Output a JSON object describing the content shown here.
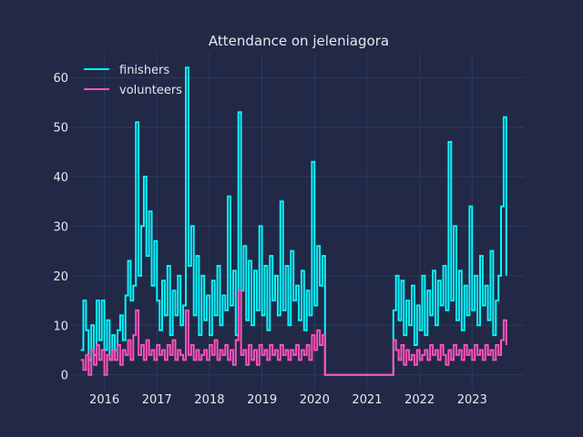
{
  "chart_data": {
    "type": "line",
    "title": "Attendance on jeleniagora",
    "xlabel": "",
    "ylabel": "",
    "xlim": [
      2015.4,
      2024.0
    ],
    "ylim": [
      -3,
      65
    ],
    "x_ticks": [
      2016,
      2017,
      2018,
      2019,
      2020,
      2021,
      2022,
      2023
    ],
    "y_ticks": [
      0,
      10,
      20,
      30,
      40,
      50,
      60
    ],
    "grid": true,
    "legend_position": "top-left",
    "series": [
      {
        "name": "finishers",
        "color": "#08F7FE",
        "points": [
          [
            2015.55,
            5
          ],
          [
            2015.6,
            15
          ],
          [
            2015.65,
            9
          ],
          [
            2015.7,
            3
          ],
          [
            2015.75,
            10
          ],
          [
            2015.8,
            4
          ],
          [
            2015.85,
            15
          ],
          [
            2015.9,
            7
          ],
          [
            2015.95,
            15
          ],
          [
            2016.0,
            5
          ],
          [
            2016.05,
            11
          ],
          [
            2016.1,
            3
          ],
          [
            2016.15,
            8
          ],
          [
            2016.2,
            5
          ],
          [
            2016.25,
            9
          ],
          [
            2016.3,
            12
          ],
          [
            2016.35,
            7
          ],
          [
            2016.4,
            16
          ],
          [
            2016.45,
            23
          ],
          [
            2016.5,
            15
          ],
          [
            2016.55,
            18
          ],
          [
            2016.6,
            51
          ],
          [
            2016.65,
            20
          ],
          [
            2016.7,
            30
          ],
          [
            2016.75,
            40
          ],
          [
            2016.8,
            24
          ],
          [
            2016.85,
            33
          ],
          [
            2016.9,
            18
          ],
          [
            2016.95,
            27
          ],
          [
            2017.0,
            15
          ],
          [
            2017.05,
            9
          ],
          [
            2017.1,
            19
          ],
          [
            2017.15,
            12
          ],
          [
            2017.2,
            22
          ],
          [
            2017.25,
            8
          ],
          [
            2017.3,
            17
          ],
          [
            2017.35,
            12
          ],
          [
            2017.4,
            20
          ],
          [
            2017.45,
            10
          ],
          [
            2017.5,
            14
          ],
          [
            2017.55,
            62
          ],
          [
            2017.6,
            22
          ],
          [
            2017.65,
            30
          ],
          [
            2017.7,
            12
          ],
          [
            2017.75,
            24
          ],
          [
            2017.8,
            8
          ],
          [
            2017.85,
            20
          ],
          [
            2017.9,
            11
          ],
          [
            2017.95,
            16
          ],
          [
            2018.0,
            8
          ],
          [
            2018.05,
            19
          ],
          [
            2018.1,
            12
          ],
          [
            2018.15,
            22
          ],
          [
            2018.2,
            10
          ],
          [
            2018.25,
            16
          ],
          [
            2018.3,
            13
          ],
          [
            2018.35,
            36
          ],
          [
            2018.4,
            14
          ],
          [
            2018.45,
            21
          ],
          [
            2018.5,
            8
          ],
          [
            2018.55,
            53
          ],
          [
            2018.6,
            17
          ],
          [
            2018.65,
            26
          ],
          [
            2018.7,
            11
          ],
          [
            2018.75,
            23
          ],
          [
            2018.8,
            10
          ],
          [
            2018.85,
            21
          ],
          [
            2018.9,
            13
          ],
          [
            2018.95,
            30
          ],
          [
            2019.0,
            12
          ],
          [
            2019.05,
            22
          ],
          [
            2019.1,
            9
          ],
          [
            2019.15,
            24
          ],
          [
            2019.2,
            15
          ],
          [
            2019.25,
            20
          ],
          [
            2019.3,
            12
          ],
          [
            2019.35,
            35
          ],
          [
            2019.4,
            13
          ],
          [
            2019.45,
            22
          ],
          [
            2019.5,
            10
          ],
          [
            2019.55,
            25
          ],
          [
            2019.6,
            15
          ],
          [
            2019.65,
            18
          ],
          [
            2019.7,
            11
          ],
          [
            2019.75,
            21
          ],
          [
            2019.8,
            9
          ],
          [
            2019.85,
            17
          ],
          [
            2019.9,
            12
          ],
          [
            2019.95,
            43
          ],
          [
            2020.0,
            14
          ],
          [
            2020.05,
            26
          ],
          [
            2020.1,
            18
          ],
          [
            2020.15,
            24
          ],
          [
            2020.2,
            0
          ],
          [
            2021.45,
            0
          ],
          [
            2021.5,
            13
          ],
          [
            2021.55,
            20
          ],
          [
            2021.6,
            11
          ],
          [
            2021.65,
            19
          ],
          [
            2021.7,
            8
          ],
          [
            2021.75,
            15
          ],
          [
            2021.8,
            10
          ],
          [
            2021.85,
            18
          ],
          [
            2021.9,
            6
          ],
          [
            2021.95,
            14
          ],
          [
            2022.0,
            9
          ],
          [
            2022.05,
            20
          ],
          [
            2022.1,
            8
          ],
          [
            2022.15,
            17
          ],
          [
            2022.2,
            12
          ],
          [
            2022.25,
            21
          ],
          [
            2022.3,
            10
          ],
          [
            2022.35,
            19
          ],
          [
            2022.4,
            14
          ],
          [
            2022.45,
            22
          ],
          [
            2022.5,
            13
          ],
          [
            2022.55,
            47
          ],
          [
            2022.6,
            15
          ],
          [
            2022.65,
            30
          ],
          [
            2022.7,
            11
          ],
          [
            2022.75,
            21
          ],
          [
            2022.8,
            9
          ],
          [
            2022.85,
            18
          ],
          [
            2022.9,
            12
          ],
          [
            2022.95,
            34
          ],
          [
            2023.0,
            13
          ],
          [
            2023.05,
            20
          ],
          [
            2023.1,
            10
          ],
          [
            2023.15,
            24
          ],
          [
            2023.2,
            14
          ],
          [
            2023.25,
            18
          ],
          [
            2023.3,
            11
          ],
          [
            2023.35,
            25
          ],
          [
            2023.4,
            8
          ],
          [
            2023.45,
            15
          ],
          [
            2023.5,
            20
          ],
          [
            2023.55,
            34
          ],
          [
            2023.6,
            52
          ],
          [
            2023.65,
            20
          ]
        ]
      },
      {
        "name": "volunteers",
        "color": "#FE53BB",
        "points": [
          [
            2015.55,
            3
          ],
          [
            2015.6,
            1
          ],
          [
            2015.65,
            4
          ],
          [
            2015.7,
            0
          ],
          [
            2015.75,
            5
          ],
          [
            2015.8,
            2
          ],
          [
            2015.85,
            6
          ],
          [
            2015.9,
            3
          ],
          [
            2015.95,
            5
          ],
          [
            2016.0,
            0
          ],
          [
            2016.05,
            4
          ],
          [
            2016.1,
            3
          ],
          [
            2016.15,
            5
          ],
          [
            2016.2,
            3
          ],
          [
            2016.25,
            6
          ],
          [
            2016.3,
            2
          ],
          [
            2016.35,
            5
          ],
          [
            2016.4,
            4
          ],
          [
            2016.45,
            7
          ],
          [
            2016.5,
            3
          ],
          [
            2016.55,
            8
          ],
          [
            2016.6,
            13
          ],
          [
            2016.65,
            4
          ],
          [
            2016.7,
            6
          ],
          [
            2016.75,
            3
          ],
          [
            2016.8,
            7
          ],
          [
            2016.85,
            4
          ],
          [
            2016.9,
            5
          ],
          [
            2016.95,
            3
          ],
          [
            2017.0,
            6
          ],
          [
            2017.05,
            4
          ],
          [
            2017.1,
            5
          ],
          [
            2017.15,
            3
          ],
          [
            2017.2,
            6
          ],
          [
            2017.25,
            4
          ],
          [
            2017.3,
            7
          ],
          [
            2017.35,
            3
          ],
          [
            2017.4,
            5
          ],
          [
            2017.45,
            4
          ],
          [
            2017.5,
            3
          ],
          [
            2017.55,
            13
          ],
          [
            2017.6,
            4
          ],
          [
            2017.65,
            6
          ],
          [
            2017.7,
            3
          ],
          [
            2017.75,
            5
          ],
          [
            2017.8,
            3
          ],
          [
            2017.85,
            4
          ],
          [
            2017.9,
            5
          ],
          [
            2017.95,
            3
          ],
          [
            2018.0,
            6
          ],
          [
            2018.05,
            4
          ],
          [
            2018.1,
            7
          ],
          [
            2018.15,
            3
          ],
          [
            2018.2,
            5
          ],
          [
            2018.25,
            4
          ],
          [
            2018.3,
            6
          ],
          [
            2018.35,
            3
          ],
          [
            2018.4,
            5
          ],
          [
            2018.45,
            2
          ],
          [
            2018.5,
            7
          ],
          [
            2018.55,
            17
          ],
          [
            2018.6,
            4
          ],
          [
            2018.65,
            5
          ],
          [
            2018.7,
            2
          ],
          [
            2018.75,
            6
          ],
          [
            2018.8,
            3
          ],
          [
            2018.85,
            5
          ],
          [
            2018.9,
            2
          ],
          [
            2018.95,
            6
          ],
          [
            2019.0,
            4
          ],
          [
            2019.05,
            5
          ],
          [
            2019.1,
            3
          ],
          [
            2019.15,
            6
          ],
          [
            2019.2,
            4
          ],
          [
            2019.25,
            5
          ],
          [
            2019.3,
            3
          ],
          [
            2019.35,
            6
          ],
          [
            2019.4,
            4
          ],
          [
            2019.45,
            5
          ],
          [
            2019.5,
            3
          ],
          [
            2019.55,
            5
          ],
          [
            2019.6,
            4
          ],
          [
            2019.65,
            6
          ],
          [
            2019.7,
            3
          ],
          [
            2019.75,
            5
          ],
          [
            2019.8,
            4
          ],
          [
            2019.85,
            6
          ],
          [
            2019.9,
            3
          ],
          [
            2019.95,
            8
          ],
          [
            2020.0,
            5
          ],
          [
            2020.05,
            9
          ],
          [
            2020.1,
            6
          ],
          [
            2020.15,
            8
          ],
          [
            2020.2,
            0
          ],
          [
            2021.45,
            0
          ],
          [
            2021.5,
            7
          ],
          [
            2021.55,
            5
          ],
          [
            2021.6,
            3
          ],
          [
            2021.65,
            6
          ],
          [
            2021.7,
            2
          ],
          [
            2021.75,
            5
          ],
          [
            2021.8,
            3
          ],
          [
            2021.85,
            4
          ],
          [
            2021.9,
            2
          ],
          [
            2021.95,
            5
          ],
          [
            2022.0,
            3
          ],
          [
            2022.05,
            4
          ],
          [
            2022.1,
            5
          ],
          [
            2022.15,
            3
          ],
          [
            2022.2,
            6
          ],
          [
            2022.25,
            4
          ],
          [
            2022.3,
            5
          ],
          [
            2022.35,
            3
          ],
          [
            2022.4,
            6
          ],
          [
            2022.45,
            4
          ],
          [
            2022.5,
            2
          ],
          [
            2022.55,
            5
          ],
          [
            2022.6,
            3
          ],
          [
            2022.65,
            6
          ],
          [
            2022.7,
            4
          ],
          [
            2022.75,
            5
          ],
          [
            2022.8,
            3
          ],
          [
            2022.85,
            6
          ],
          [
            2022.9,
            4
          ],
          [
            2022.95,
            5
          ],
          [
            2023.0,
            3
          ],
          [
            2023.05,
            6
          ],
          [
            2023.1,
            4
          ],
          [
            2023.15,
            5
          ],
          [
            2023.2,
            3
          ],
          [
            2023.25,
            6
          ],
          [
            2023.3,
            4
          ],
          [
            2023.35,
            5
          ],
          [
            2023.4,
            3
          ],
          [
            2023.45,
            6
          ],
          [
            2023.5,
            4
          ],
          [
            2023.55,
            7
          ],
          [
            2023.6,
            11
          ],
          [
            2023.65,
            6
          ]
        ]
      }
    ]
  }
}
